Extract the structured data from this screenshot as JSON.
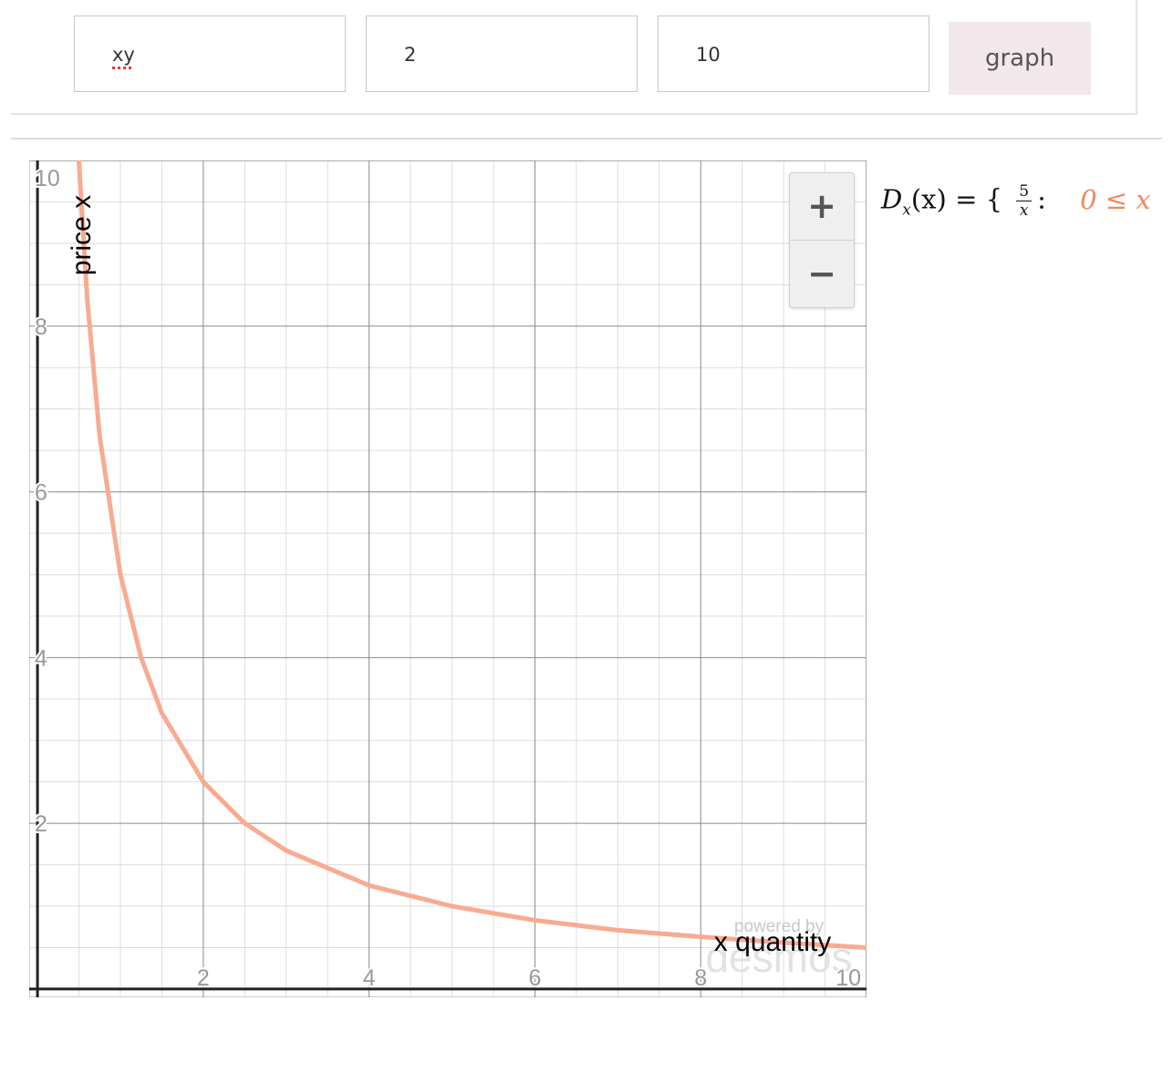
{
  "inputs": {
    "function_value": "xy",
    "param_a_value": "2",
    "param_b_value": "10"
  },
  "graph_button_label": "graph",
  "zoom": {
    "in_label": "+",
    "out_label": "−"
  },
  "formula": {
    "lhs_name": "D",
    "lhs_sub": "x",
    "lhs_arg": "(x)",
    "equals": "=",
    "brace": "{",
    "frac_num": "5",
    "frac_den": "x",
    "colon": ":",
    "condition": "0 ≤ x"
  },
  "watermark": {
    "line1": "powered by",
    "line2": "desmos"
  },
  "colors": {
    "curve": "#f8ab91",
    "condition": "#f5865c",
    "button_bg": "#f2e8eb"
  },
  "chart_data": {
    "type": "line",
    "xlabel": "x quantity",
    "ylabel": "price x",
    "xlim": [
      -0.1,
      10
    ],
    "ylim": [
      -0.1,
      10
    ],
    "x_ticks": [
      "2",
      "4",
      "6",
      "8",
      "10"
    ],
    "y_ticks": [
      "2",
      "4",
      "6",
      "8",
      "10"
    ],
    "grid": true,
    "series": [
      {
        "function": "y = 5/x",
        "x": [
          0.5,
          0.6,
          0.75,
          1,
          1.25,
          1.5,
          2,
          2.5,
          3,
          4,
          5,
          6,
          7,
          8,
          9,
          10
        ],
        "y": [
          10,
          8.33,
          6.67,
          5,
          4,
          3.33,
          2.5,
          2,
          1.67,
          1.25,
          1,
          0.83,
          0.71,
          0.63,
          0.56,
          0.5
        ]
      }
    ]
  }
}
